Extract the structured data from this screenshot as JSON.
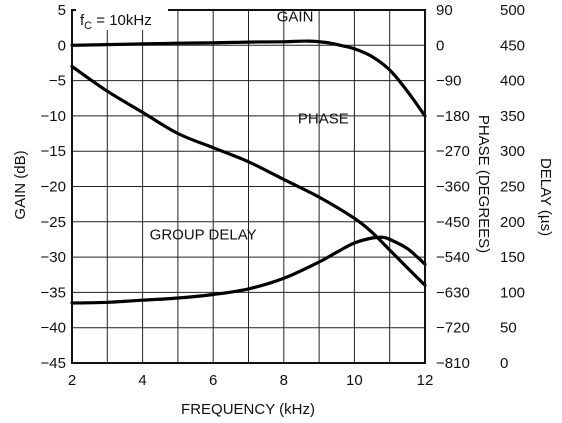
{
  "chart_data": {
    "type": "line",
    "annotation": {
      "main": "f",
      "sub": "C",
      "rest": " = 10kHz"
    },
    "xlabel": "FREQUENCY (kHz)",
    "xlim": [
      2,
      12
    ],
    "x_ticks": [
      "2",
      "4",
      "6",
      "8",
      "10",
      "12"
    ],
    "axes": {
      "gain": {
        "label": "GAIN (dB)",
        "lim": [
          -45,
          5
        ],
        "ticks": [
          "5",
          "0",
          "−5",
          "−10",
          "−15",
          "−20",
          "−25",
          "−30",
          "−35",
          "−40",
          "−45"
        ]
      },
      "phase": {
        "label": "PHASE (DEGREES)",
        "lim": [
          -810,
          90
        ],
        "ticks": [
          "90",
          "0",
          "−90",
          "−180",
          "−270",
          "−360",
          "−450",
          "−540",
          "−630",
          "−720",
          "−810"
        ]
      },
      "delay": {
        "label": "DELAY (µs)",
        "lim": [
          0,
          500
        ],
        "ticks": [
          "500",
          "450",
          "400",
          "350",
          "300",
          "250",
          "200",
          "150",
          "100",
          "50",
          "0"
        ]
      }
    },
    "grid": true,
    "series": [
      {
        "name": "GAIN",
        "axis": "gain",
        "label_at": [
          7.8,
          3.4
        ],
        "points": [
          [
            2,
            0.0
          ],
          [
            3,
            0.1
          ],
          [
            4,
            0.2
          ],
          [
            5,
            0.3
          ],
          [
            6,
            0.35
          ],
          [
            7,
            0.45
          ],
          [
            8,
            0.5
          ],
          [
            8.7,
            0.6
          ],
          [
            9.2,
            0.4
          ],
          [
            9.6,
            0.0
          ],
          [
            10,
            -0.5
          ],
          [
            10.5,
            -1.6
          ],
          [
            11,
            -3.5
          ],
          [
            11.5,
            -6.5
          ],
          [
            12,
            -10
          ]
        ]
      },
      {
        "name": "PHASE",
        "axis": "phase",
        "label_at": [
          8.4,
          -200
        ],
        "points": [
          [
            2,
            -54
          ],
          [
            3,
            -117
          ],
          [
            4,
            -171
          ],
          [
            5,
            -225
          ],
          [
            6,
            -261
          ],
          [
            7,
            -297
          ],
          [
            8,
            -342
          ],
          [
            9,
            -387
          ],
          [
            10,
            -441
          ],
          [
            10.5,
            -477
          ],
          [
            11,
            -522
          ],
          [
            11.5,
            -567
          ],
          [
            12,
            -612
          ]
        ]
      },
      {
        "name": "GROUP DELAY",
        "axis": "delay",
        "label_at": [
          4.2,
          175
        ],
        "points": [
          [
            2,
            85
          ],
          [
            3,
            86
          ],
          [
            4,
            89
          ],
          [
            5,
            92
          ],
          [
            6,
            97
          ],
          [
            7,
            105
          ],
          [
            8,
            120
          ],
          [
            9,
            143
          ],
          [
            9.5,
            157
          ],
          [
            10,
            170
          ],
          [
            10.5,
            177
          ],
          [
            10.8,
            178
          ],
          [
            11,
            175
          ],
          [
            11.5,
            162
          ],
          [
            12,
            140
          ]
        ]
      }
    ]
  }
}
